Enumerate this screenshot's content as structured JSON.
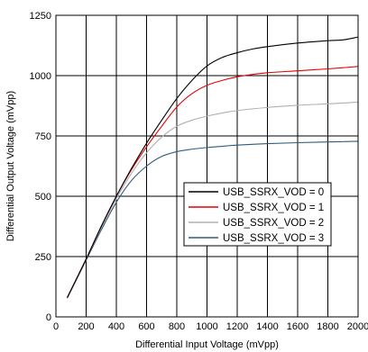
{
  "chart_data": {
    "type": "line",
    "title": "",
    "xlabel": "Differential Input Voltage (mVpp)",
    "ylabel": "Differential Output Voltage (mVpp)",
    "xlim": [
      0,
      2000
    ],
    "ylim": [
      0,
      1250
    ],
    "xticks": [
      "0",
      "200",
      "400",
      "600",
      "800",
      "1000",
      "1200",
      "1400",
      "1600",
      "1800",
      "2000"
    ],
    "yticks": [
      "0",
      "250",
      "500",
      "750",
      "1000",
      "1250"
    ],
    "grid": true,
    "legend_position": "lower-right",
    "series": [
      {
        "name": "USB_SSRX_VOD = 0",
        "color": "#000000",
        "x": [
          75,
          200,
          300,
          400,
          500,
          600,
          700,
          800,
          900,
          1000,
          1100,
          1200,
          1300,
          1400,
          1600,
          1800,
          1900,
          2000
        ],
        "y": [
          80,
          240,
          375,
          500,
          615,
          720,
          815,
          905,
          980,
          1040,
          1075,
          1095,
          1110,
          1120,
          1135,
          1145,
          1148,
          1160
        ]
      },
      {
        "name": "USB_SSRX_VOD = 1",
        "color": "#e60000",
        "x": [
          75,
          200,
          300,
          400,
          500,
          600,
          700,
          800,
          900,
          1000,
          1100,
          1200,
          1300,
          1400,
          1600,
          1800,
          2000
        ],
        "y": [
          80,
          240,
          375,
          500,
          610,
          705,
          790,
          870,
          925,
          960,
          980,
          995,
          1005,
          1012,
          1020,
          1028,
          1038
        ]
      },
      {
        "name": "USB_SSRX_VOD = 2",
        "color": "#b0b0b0",
        "x": [
          75,
          200,
          300,
          400,
          500,
          600,
          700,
          800,
          900,
          1000,
          1100,
          1200,
          1400,
          1600,
          1800,
          2000
        ],
        "y": [
          80,
          240,
          370,
          490,
          595,
          680,
          745,
          790,
          815,
          832,
          845,
          855,
          868,
          877,
          883,
          890
        ]
      },
      {
        "name": "USB_SSRX_VOD = 3",
        "color": "#2f5b7a",
        "x": [
          75,
          200,
          300,
          400,
          500,
          600,
          700,
          800,
          900,
          1000,
          1100,
          1200,
          1400,
          1600,
          1800,
          2000
        ],
        "y": [
          78,
          235,
          360,
          475,
          565,
          625,
          665,
          685,
          695,
          702,
          707,
          712,
          718,
          722,
          725,
          728
        ]
      }
    ]
  }
}
